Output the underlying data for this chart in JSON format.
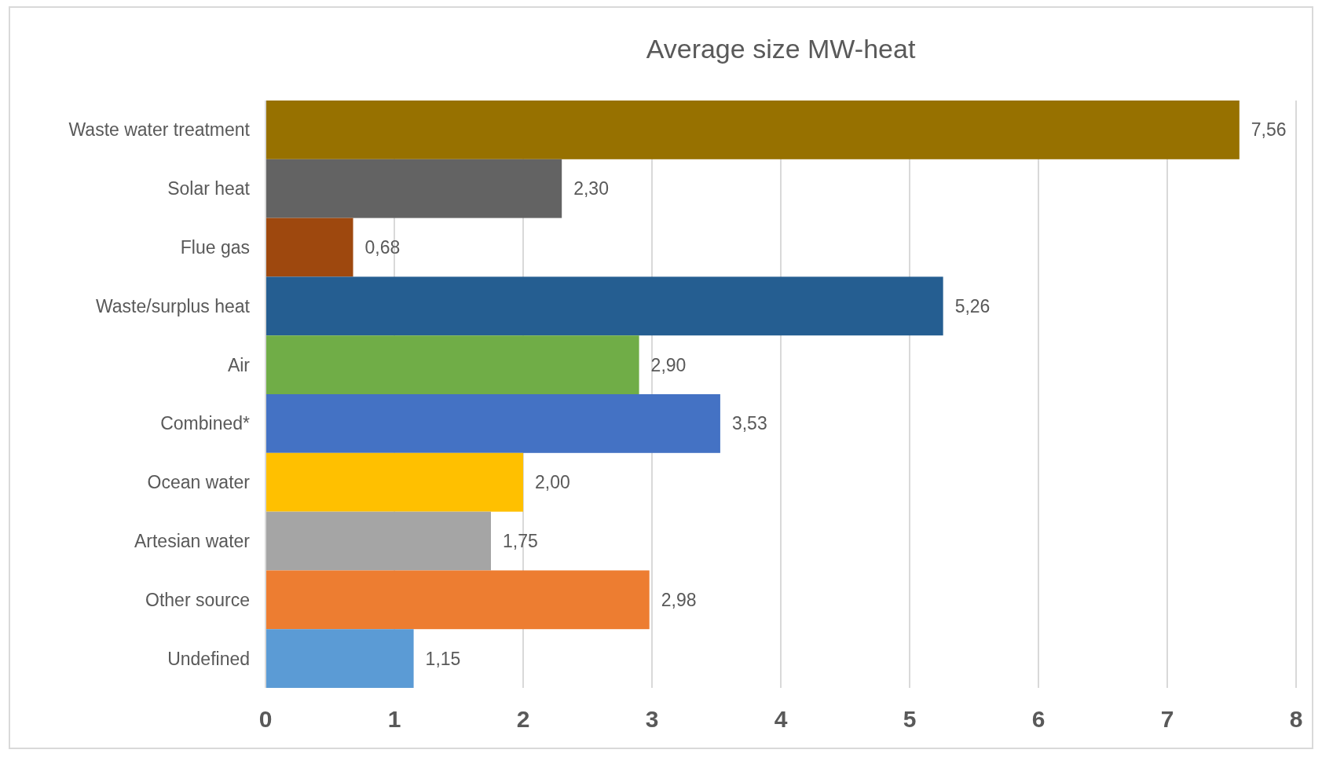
{
  "chart_data": {
    "type": "bar",
    "orientation": "horizontal",
    "title": "Average size MW-heat",
    "categories": [
      "Waste water treatment",
      "Solar heat",
      "Flue gas",
      "Waste/surplus heat",
      "Air",
      "Combined*",
      "Ocean water",
      "Artesian water",
      "Other source",
      "Undefined"
    ],
    "values": [
      7.56,
      2.3,
      0.68,
      5.26,
      2.9,
      3.53,
      2.0,
      1.75,
      2.98,
      1.15
    ],
    "colors": [
      "#977100",
      "#636363",
      "#9e480e",
      "#255e91",
      "#70ad47",
      "#4472c4",
      "#ffc000",
      "#a5a5a5",
      "#ed7d31",
      "#5b9bd5"
    ],
    "value_labels": [
      "7,56",
      "2,30",
      "0,68",
      "5,26",
      "2,90",
      "3,53",
      "2,00",
      "1,75",
      "2,98",
      "1,15"
    ],
    "xlim": [
      0,
      8
    ],
    "xticks": [
      0,
      1,
      2,
      3,
      4,
      5,
      6,
      7,
      8
    ],
    "grid": "x"
  }
}
